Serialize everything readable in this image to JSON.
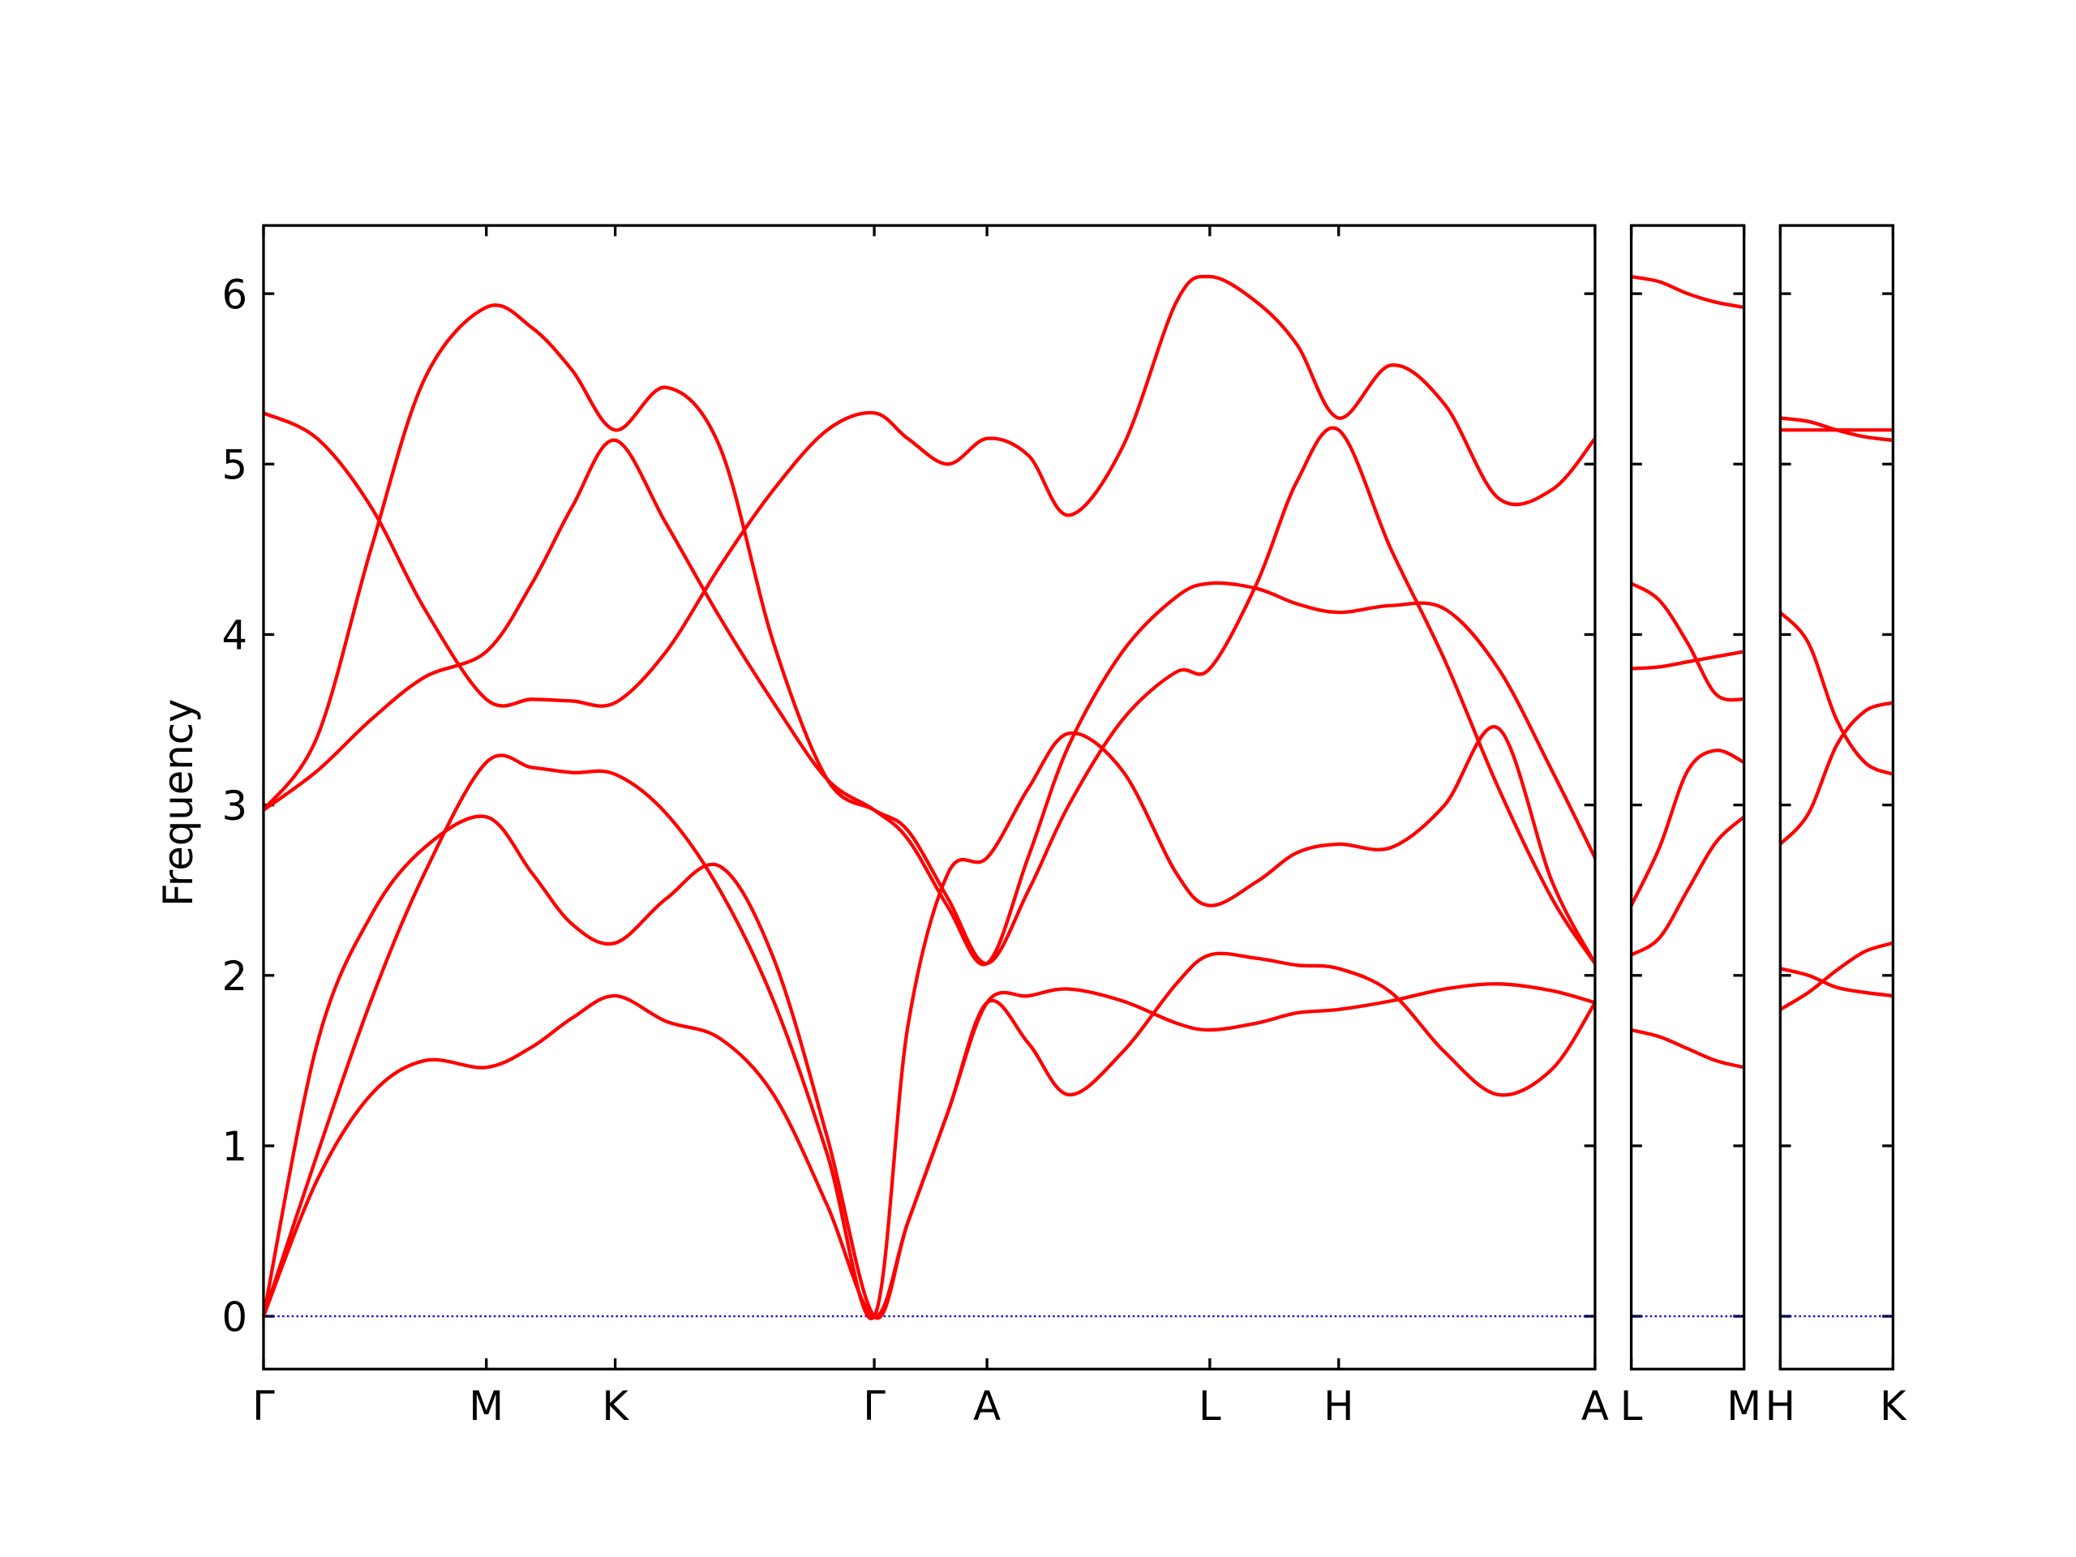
{
  "chart_data": [
    {
      "type": "line",
      "ylabel": "Frequency",
      "ylim": [
        -0.31,
        6.4
      ],
      "yticks": [
        0,
        1,
        2,
        3,
        4,
        5,
        6
      ],
      "xlim": [
        0,
        992
      ],
      "xticks": [
        {
          "value": 0,
          "label": "Γ"
        },
        {
          "value": 166,
          "label": "M"
        },
        {
          "value": 262,
          "label": "K"
        },
        {
          "value": 455,
          "label": "Γ"
        },
        {
          "value": 539,
          "label": "A"
        },
        {
          "value": 705,
          "label": "L"
        },
        {
          "value": 801,
          "label": "H"
        },
        {
          "value": 992,
          "label": "A"
        }
      ],
      "hline": 0,
      "hline_color": "#0000ff",
      "x": [
        0,
        40,
        80,
        120,
        166,
        200,
        230,
        262,
        300,
        340,
        380,
        420,
        455,
        480,
        510,
        539,
        570,
        600,
        640,
        680,
        705,
        740,
        770,
        801,
        840,
        880,
        920,
        960,
        992
      ],
      "series": [
        {
          "color": "#ff0000",
          "values": [
            0,
            0.8,
            1.3,
            1.5,
            1.46,
            1.58,
            1.75,
            1.88,
            1.73,
            1.63,
            1.3,
            0.65,
            0,
            0.55,
            1.2,
            1.84,
            1.88,
            1.92,
            1.85,
            1.72,
            1.68,
            1.72,
            1.78,
            1.8,
            1.85,
            1.92,
            1.95,
            1.91,
            1.84
          ]
        },
        {
          "color": "#ff0000",
          "values": [
            0,
            1.6,
            2.35,
            2.75,
            2.93,
            2.6,
            2.3,
            2.19,
            2.45,
            2.64,
            2.1,
            1.05,
            0,
            0.55,
            1.2,
            1.84,
            1.6,
            1.3,
            1.55,
            1.95,
            2.12,
            2.1,
            2.06,
            2.04,
            1.9,
            1.55,
            1.3,
            1.45,
            1.84
          ]
        },
        {
          "color": "#ff0000",
          "values": [
            0,
            0.95,
            1.85,
            2.6,
            3.25,
            3.22,
            3.19,
            3.18,
            2.95,
            2.5,
            1.85,
            0.95,
            0,
            1.7,
            2.6,
            2.69,
            3.1,
            3.42,
            3.2,
            2.6,
            2.41,
            2.55,
            2.72,
            2.77,
            2.75,
            3.0,
            3.45,
            2.55,
            2.07
          ]
        },
        {
          "color": "#ff0000",
          "values": [
            2.97,
            3.2,
            3.5,
            3.75,
            3.9,
            4.3,
            4.75,
            5.14,
            4.65,
            4.1,
            3.6,
            3.15,
            2.97,
            2.8,
            2.4,
            2.07,
            2.7,
            3.35,
            3.9,
            4.22,
            4.3,
            4.27,
            4.18,
            4.13,
            4.17,
            4.15,
            3.8,
            3.2,
            2.69
          ]
        },
        {
          "color": "#ff0000",
          "values": [
            2.97,
            3.4,
            4.5,
            5.5,
            5.92,
            5.8,
            5.55,
            5.2,
            5.45,
            5.1,
            3.95,
            3.15,
            2.97,
            2.85,
            2.45,
            2.07,
            2.5,
            3.0,
            3.5,
            3.78,
            3.8,
            4.3,
            4.9,
            5.2,
            4.5,
            3.85,
            3.1,
            2.45,
            2.07
          ]
        },
        {
          "color": "#ff0000",
          "values": [
            5.3,
            5.15,
            4.75,
            4.15,
            3.62,
            3.62,
            3.61,
            3.6,
            3.9,
            4.4,
            4.85,
            5.2,
            5.3,
            5.15,
            5.0,
            5.15,
            5.05,
            4.7,
            5.1,
            5.95,
            6.1,
            5.95,
            5.7,
            5.27,
            5.58,
            5.35,
            4.8,
            4.85,
            5.15
          ]
        }
      ]
    },
    {
      "type": "line",
      "ylim": [
        -0.31,
        6.4
      ],
      "xlim": [
        0,
        84
      ],
      "xticks": [
        {
          "value": 0,
          "label": "L"
        },
        {
          "value": 84,
          "label": "M"
        }
      ],
      "hline": 0,
      "hline_color": "#0000ff",
      "x": [
        0,
        21,
        42,
        63,
        84
      ],
      "series": [
        {
          "color": "#ff0000",
          "values": [
            6.1,
            6.07,
            6.0,
            5.95,
            5.92
          ]
        },
        {
          "color": "#ff0000",
          "values": [
            4.3,
            4.2,
            3.95,
            3.65,
            3.62
          ]
        },
        {
          "color": "#ff0000",
          "values": [
            3.8,
            3.81,
            3.84,
            3.87,
            3.9
          ]
        },
        {
          "color": "#ff0000",
          "values": [
            2.41,
            2.75,
            3.2,
            3.32,
            3.25
          ]
        },
        {
          "color": "#ff0000",
          "values": [
            2.12,
            2.22,
            2.5,
            2.78,
            2.93
          ]
        },
        {
          "color": "#ff0000",
          "values": [
            1.68,
            1.64,
            1.57,
            1.5,
            1.46
          ]
        }
      ]
    },
    {
      "type": "line",
      "ylim": [
        -0.31,
        6.4
      ],
      "xlim": [
        0,
        84
      ],
      "xticks": [
        {
          "value": 0,
          "label": "H"
        },
        {
          "value": 84,
          "label": "K"
        }
      ],
      "hline": 0,
      "hline_color": "#0000ff",
      "x": [
        0,
        21,
        42,
        63,
        84
      ],
      "series": [
        {
          "color": "#ff0000",
          "values": [
            5.27,
            5.25,
            5.2,
            5.16,
            5.14
          ]
        },
        {
          "color": "#ff0000",
          "values": [
            5.2,
            5.2,
            5.2,
            5.2,
            5.2
          ]
        },
        {
          "color": "#ff0000",
          "values": [
            4.13,
            3.95,
            3.5,
            3.25,
            3.18
          ]
        },
        {
          "color": "#ff0000",
          "values": [
            2.77,
            2.95,
            3.35,
            3.55,
            3.6
          ]
        },
        {
          "color": "#ff0000",
          "values": [
            2.04,
            2.0,
            1.93,
            1.9,
            1.88
          ]
        },
        {
          "color": "#ff0000",
          "values": [
            1.8,
            1.9,
            2.03,
            2.14,
            2.19
          ]
        }
      ]
    }
  ]
}
